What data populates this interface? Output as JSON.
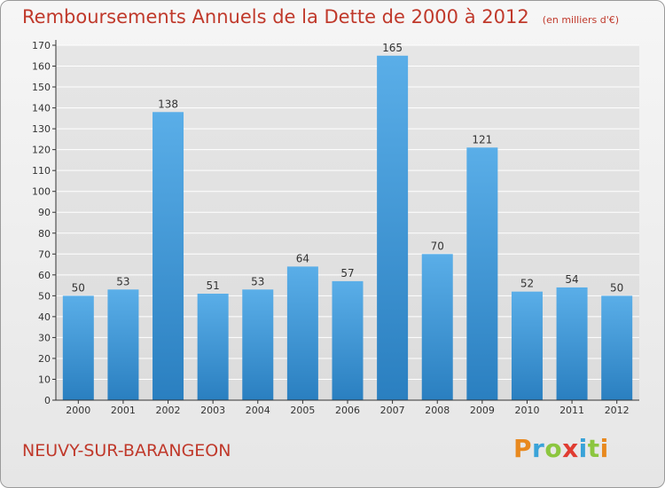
{
  "header": {
    "title": "Remboursements Annuels de la Dette de 2000 à 2012",
    "subtitle": "(en milliers d'€)"
  },
  "footer": {
    "commune": "NEUVY-SUR-BARANGEON",
    "logo_text": "Proxiti"
  },
  "colors": {
    "title": "#c0392b",
    "bar_top": "#5aaee8",
    "bar_bottom": "#2a7fc0",
    "grid": "#ffffff",
    "axis": "#333333",
    "label": "#333333"
  },
  "chart_data": {
    "type": "bar",
    "title": "Remboursements Annuels de la Dette de 2000 à 2012",
    "subtitle": "(en milliers d'€)",
    "xlabel": "",
    "ylabel": "",
    "categories": [
      "2000",
      "2001",
      "2002",
      "2003",
      "2004",
      "2005",
      "2006",
      "2007",
      "2008",
      "2009",
      "2010",
      "2011",
      "2012"
    ],
    "values": [
      50,
      53,
      138,
      51,
      53,
      64,
      57,
      165,
      70,
      121,
      52,
      54,
      50
    ],
    "ylim": [
      0,
      170
    ],
    "y_ticks": [
      0,
      10,
      20,
      30,
      40,
      50,
      60,
      70,
      80,
      90,
      100,
      110,
      120,
      130,
      140,
      150,
      160,
      170
    ],
    "grid": true,
    "data_labels": true
  }
}
